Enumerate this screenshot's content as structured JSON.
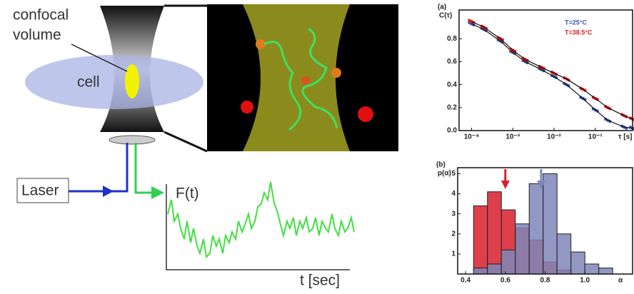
{
  "diagram": {
    "labels": {
      "confocal": "confocal",
      "volume": "volume",
      "cell": "cell",
      "laser": "Laser",
      "signal_y": "F(t)",
      "signal_x": "t [sec]"
    }
  },
  "chart_data": [
    {
      "type": "scatter",
      "panel_label": "(a)",
      "y_label": "C(τ)",
      "x_label": "τ [s]",
      "x": [
        0.0001,
        0.0002,
        0.0005,
        0.001,
        0.002,
        0.005,
        0.01,
        0.02,
        0.05,
        0.1,
        0.2,
        0.5,
        0.8
      ],
      "series": [
        {
          "name": "T=25°C",
          "color": "#3a56b0",
          "values": [
            0.93,
            0.88,
            0.78,
            0.68,
            0.6,
            0.53,
            0.47,
            0.4,
            0.28,
            0.18,
            0.09,
            0.03,
            0.02
          ]
        },
        {
          "name": "T=38.5°C",
          "color": "#e02020",
          "values": [
            0.95,
            0.9,
            0.8,
            0.7,
            0.62,
            0.55,
            0.5,
            0.45,
            0.36,
            0.28,
            0.2,
            0.13,
            0.1
          ]
        }
      ],
      "log_x": true,
      "xlim": [
        5e-05,
        0.8
      ],
      "ylim": [
        0,
        1.05
      ],
      "xticks": [
        {
          "value": 0.0001,
          "label": "10⁻⁴"
        },
        {
          "value": 0.001,
          "label": "10⁻³"
        },
        {
          "value": 0.01,
          "label": "10⁻²"
        },
        {
          "value": 0.1,
          "label": "10⁻¹"
        }
      ],
      "yticks": [
        {
          "value": 0,
          "label": "0.0"
        },
        0.2,
        0.4,
        0.6,
        0.8
      ],
      "legend": "top-right"
    },
    {
      "type": "histogram",
      "panel_label": "(b)",
      "y_label": "p(α)",
      "x_label": "α",
      "bins": [
        0.44,
        0.51,
        0.58,
        0.65,
        0.72,
        0.79,
        0.86,
        0.93,
        1.0,
        1.07,
        1.14
      ],
      "series": [
        {
          "color": "#d81e2c",
          "values": [
            3.4,
            4.1,
            3.2,
            2.3,
            1.7,
            0.6,
            0.2,
            0,
            0,
            0
          ]
        },
        {
          "color": "#7f86b8",
          "values": [
            0.3,
            0.5,
            1.2,
            2.5,
            4.5,
            5.0,
            2.0,
            1.1,
            0.5,
            0.3
          ]
        }
      ],
      "arrows": [
        {
          "value": 0.6,
          "color": "#d81e2c"
        },
        {
          "value": 0.78,
          "color": "#7f86b8"
        }
      ],
      "xlim": [
        0.36,
        1.24
      ],
      "ylim": [
        0,
        5.3
      ],
      "xticks": [
        0.4,
        0.6,
        0.8,
        {
          "value": 1,
          "label": "1.0"
        }
      ],
      "yticks": [
        1,
        2,
        3,
        4,
        5
      ]
    }
  ]
}
